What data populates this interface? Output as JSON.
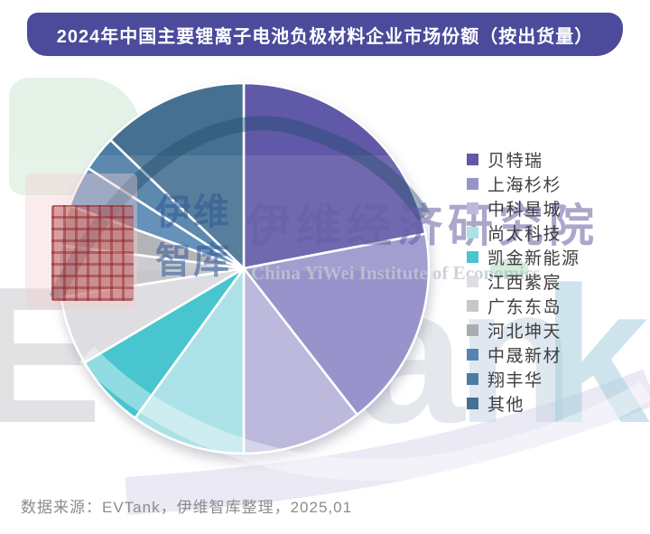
{
  "page": {
    "title_bar": "2024年中国主要锂离子电池负极材料企业市场份额（按出货量）",
    "source_note": "数据来源：EVTank，伊维智库整理，2025,01",
    "accent_color": "#4b4a9b",
    "background_color": "#ffffff"
  },
  "watermark": {
    "brand": "EVTank",
    "cn_line1": "伊维",
    "cn_line2": "智库",
    "cn_headline": "伊维经济研究院",
    "en_line": "China YiWei Institute of Economics"
  },
  "chart_data": {
    "type": "pie",
    "title": "2024年中国主要锂离子电池负极材料企业市场份额（按出货量）",
    "legend_position": "right",
    "direction": "clockwise",
    "start_angle_deg": 0,
    "values_note": "no data labels shown in chart; percentage shares estimated from slice arc angles",
    "unit": "%",
    "categories": [
      "贝特瑞",
      "上海杉杉",
      "中科星城",
      "尚太科技",
      "凯金新能源",
      "江西紫宸",
      "广东东岛",
      "河北坤天",
      "中晟新材",
      "翔丰华",
      "其他"
    ],
    "values": [
      22,
      17.5,
      10.5,
      10,
      6.5,
      6,
      4.5,
      3.5,
      3.6,
      3.1,
      12.8
    ],
    "colors": [
      "#6059a7",
      "#9894cb",
      "#bcb9dc",
      "#ace2e7",
      "#48c5cf",
      "#dedee2",
      "#c7c7cb",
      "#acacb0",
      "#5585b4",
      "#4b7ca5",
      "#467091"
    ],
    "pie_center": [
      270,
      297
    ],
    "pie_radius": 205
  }
}
